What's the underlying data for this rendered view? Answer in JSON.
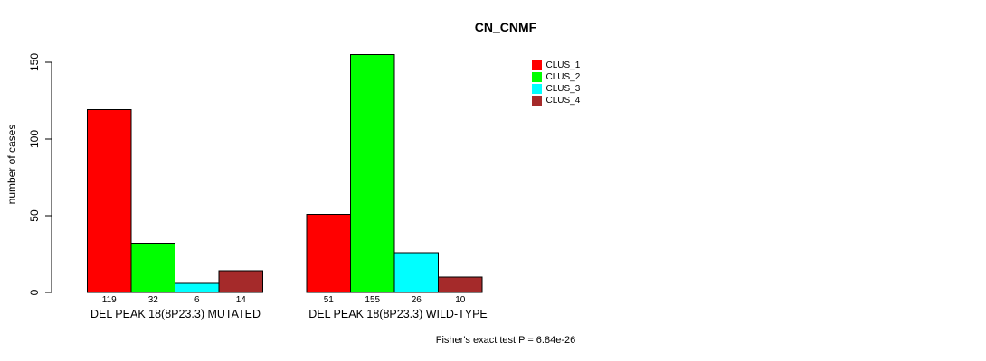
{
  "title": "CN_CNMF",
  "ylabel": "number of cases",
  "footnote": "Fisher's exact test P = 6.84e-26",
  "chart_data": {
    "type": "bar",
    "title": "CN_CNMF",
    "xlabel": "",
    "ylabel": "number of cases",
    "ylim": [
      0,
      155
    ],
    "yticks": [
      0,
      50,
      100,
      150
    ],
    "grid": false,
    "legend_position": "top-right",
    "categories": [
      "DEL PEAK 18(8P23.3) MUTATED",
      "DEL PEAK 18(8P23.3) WILD-TYPE"
    ],
    "series": [
      {
        "name": "CLUS_1",
        "color": "#FF0000",
        "values": [
          119,
          51
        ]
      },
      {
        "name": "CLUS_2",
        "color": "#00FF00",
        "values": [
          32,
          155
        ]
      },
      {
        "name": "CLUS_3",
        "color": "#00FFFF",
        "values": [
          6,
          26
        ]
      },
      {
        "name": "CLUS_4",
        "color": "#A52A2A",
        "values": [
          14,
          10
        ]
      }
    ],
    "bar_value_labels": [
      [
        119,
        32,
        6,
        14
      ],
      [
        51,
        155,
        26,
        10
      ]
    ],
    "annotation": "Fisher's exact test P = 6.84e-26"
  }
}
